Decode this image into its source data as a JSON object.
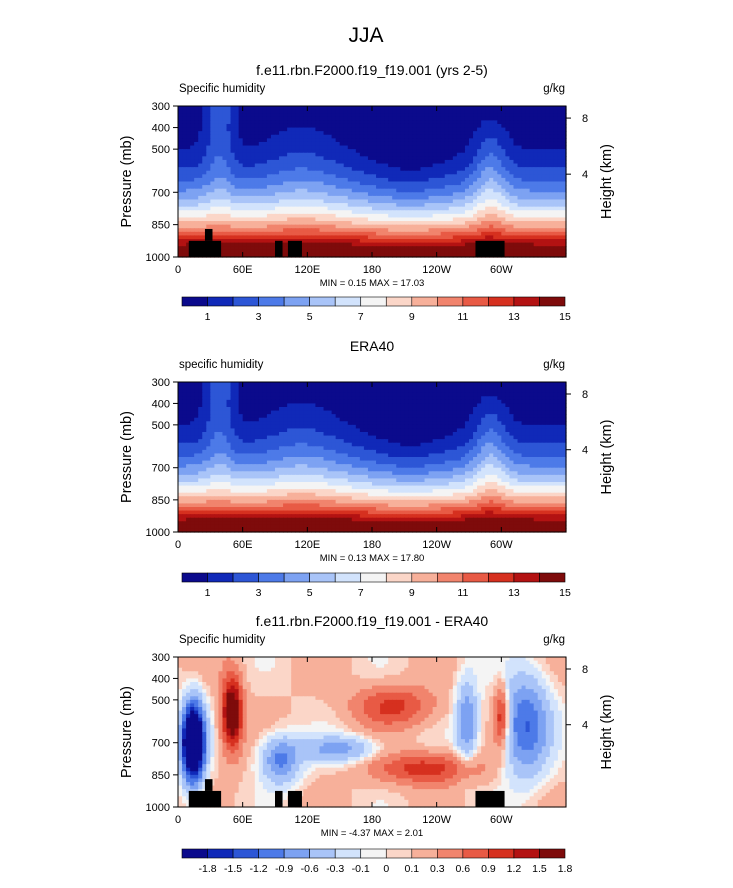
{
  "figure_title": "JJA",
  "chart_data": [
    {
      "type": "heatmap",
      "title": "f.e11.rbn.F2000.f19_f19.001 (yrs 2-5)",
      "left_label": "Specific humidity",
      "right_label": "g/kg",
      "ylabel": "Pressure (mb)",
      "ylabel_right": "Height (km)",
      "x_ticks": [
        "0",
        "60E",
        "120E",
        "180",
        "120W",
        "60W"
      ],
      "x_tick_values": [
        0,
        60,
        120,
        180,
        240,
        300
      ],
      "xlim": [
        0,
        360
      ],
      "y_ticks": [
        "300",
        "400",
        "500",
        "700",
        "850",
        "1000"
      ],
      "y_tick_values": [
        300,
        400,
        500,
        700,
        850,
        1000
      ],
      "ylim": [
        300,
        1000
      ],
      "right_ticks": [
        "8",
        "4"
      ],
      "right_tick_pressures": [
        356,
        616
      ],
      "stats": "MIN =   0.15  MAX =  17.03",
      "colorbar_labels": [
        "1",
        "3",
        "5",
        "7",
        "9",
        "11",
        "13",
        "15"
      ],
      "colorbar_colors": [
        "#0b0a8c",
        "#1029b8",
        "#2d56d6",
        "#4d7ae8",
        "#7da2f2",
        "#a9c4f8",
        "#d2e3fc",
        "#f4f4f4",
        "#fbd6c8",
        "#f7b09a",
        "#f1846d",
        "#e85a45",
        "#d6301f",
        "#b31212",
        "#7e0b0b"
      ],
      "colorbar_label_positions": [
        1,
        3,
        5,
        7,
        9,
        11,
        13,
        15
      ],
      "colorbar_levels": 16,
      "topo_blocks": [
        [
          10,
          40,
          925,
          1000
        ],
        [
          25,
          32,
          870,
          925
        ],
        [
          90,
          97,
          925,
          1000
        ],
        [
          102,
          115,
          925,
          1000
        ],
        [
          276,
          303,
          925,
          1000
        ]
      ]
    },
    {
      "type": "heatmap",
      "title": "ERA40",
      "left_label": "specific humidity",
      "right_label": "g/kg",
      "ylabel": "Pressure (mb)",
      "ylabel_right": "Height (km)",
      "x_ticks": [
        "0",
        "60E",
        "120E",
        "180",
        "120W",
        "60W"
      ],
      "x_tick_values": [
        0,
        60,
        120,
        180,
        240,
        300
      ],
      "xlim": [
        0,
        360
      ],
      "y_ticks": [
        "300",
        "400",
        "500",
        "700",
        "850",
        "1000"
      ],
      "y_tick_values": [
        300,
        400,
        500,
        700,
        850,
        1000
      ],
      "ylim": [
        300,
        1000
      ],
      "right_ticks": [
        "8",
        "4"
      ],
      "right_tick_pressures": [
        356,
        616
      ],
      "stats": "MIN =   0.13  MAX =  17.80",
      "colorbar_labels": [
        "1",
        "3",
        "5",
        "7",
        "9",
        "11",
        "13",
        "15"
      ],
      "colorbar_colors": [
        "#0b0a8c",
        "#1029b8",
        "#2d56d6",
        "#4d7ae8",
        "#7da2f2",
        "#a9c4f8",
        "#d2e3fc",
        "#f4f4f4",
        "#fbd6c8",
        "#f7b09a",
        "#f1846d",
        "#e85a45",
        "#d6301f",
        "#b31212",
        "#7e0b0b"
      ],
      "colorbar_label_positions": [
        1,
        3,
        5,
        7,
        9,
        11,
        13,
        15
      ],
      "colorbar_levels": 16,
      "topo_blocks": []
    },
    {
      "type": "heatmap",
      "title": "f.e11.rbn.F2000.f19_f19.001 - ERA40",
      "left_label": "Specific humidity",
      "right_label": "g/kg",
      "ylabel": "Pressure (mb)",
      "ylabel_right": "Height (km)",
      "x_ticks": [
        "0",
        "60E",
        "120E",
        "180",
        "120W",
        "60W"
      ],
      "x_tick_values": [
        0,
        60,
        120,
        180,
        240,
        300
      ],
      "xlim": [
        0,
        360
      ],
      "y_ticks": [
        "300",
        "400",
        "500",
        "700",
        "850",
        "1000"
      ],
      "y_tick_values": [
        300,
        400,
        500,
        700,
        850,
        1000
      ],
      "ylim": [
        300,
        1000
      ],
      "right_ticks": [
        "8",
        "4"
      ],
      "right_tick_pressures": [
        356,
        616
      ],
      "stats": "MIN =  -4.37  MAX =   2.01",
      "colorbar_labels": [
        "-1.8",
        "-1.5",
        "-1.2",
        "-0.9",
        "-0.6",
        "-0.3",
        "-0.1",
        "0",
        "0.1",
        "0.3",
        "0.6",
        "0.9",
        "1.2",
        "1.5",
        "1.8"
      ],
      "colorbar_colors": [
        "#0b0a8c",
        "#1029b8",
        "#2d56d6",
        "#4d7ae8",
        "#7da2f2",
        "#a9c4f8",
        "#d2e3fc",
        "#f4f4f4",
        "#fbd6c8",
        "#f7b09a",
        "#f1846d",
        "#e85a45",
        "#d6301f",
        "#b31212",
        "#7e0b0b"
      ],
      "colorbar_label_positions": [
        1,
        2,
        3,
        4,
        5,
        6,
        7,
        8,
        9,
        10,
        11,
        12,
        13,
        14,
        15
      ],
      "colorbar_levels": 16,
      "topo_blocks": [
        [
          10,
          40,
          925,
          1000
        ],
        [
          25,
          32,
          870,
          925
        ],
        [
          90,
          97,
          925,
          1000
        ],
        [
          102,
          115,
          925,
          1000
        ],
        [
          276,
          303,
          925,
          1000
        ]
      ]
    }
  ]
}
